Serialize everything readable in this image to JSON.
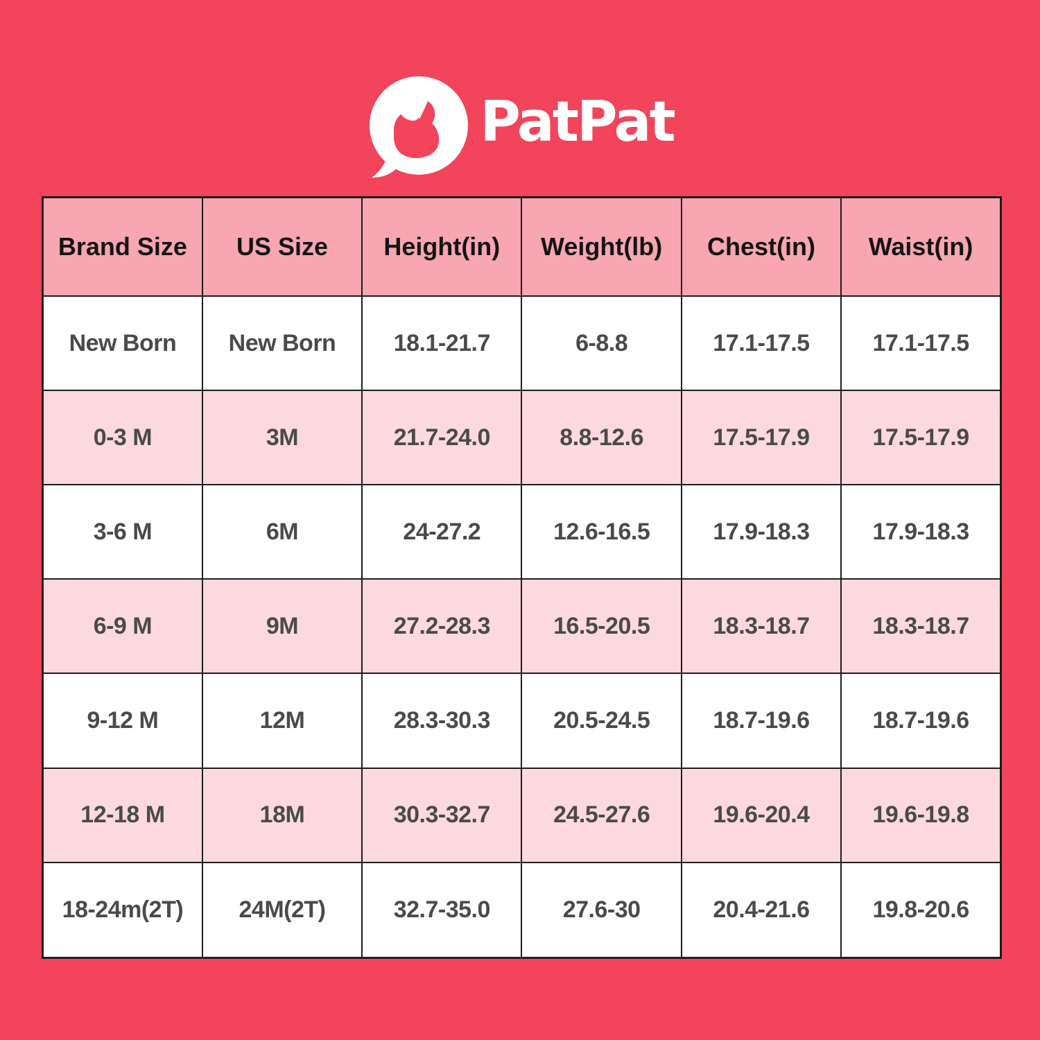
{
  "logo": {
    "text": "PatPat",
    "icon": "patpat-logo-icon"
  },
  "colors": {
    "background": "#F2445A",
    "header_bg": "#F8A6B1",
    "row_bg": "#FFFFFF",
    "row_alt_bg": "#FBD9DE",
    "border": "#1C1C1C",
    "logo_text": "#FFFFFF",
    "header_text": "#141414",
    "cell_text": "#4A4A4A"
  },
  "chart_data": {
    "type": "table",
    "title": "PatPat",
    "columns": [
      "Brand Size",
      "US Size",
      "Height(in)",
      "Weight(lb)",
      "Chest(in)",
      "Waist(in)"
    ],
    "rows": [
      [
        "New Born",
        "New Born",
        "18.1-21.7",
        "6-8.8",
        "17.1-17.5",
        "17.1-17.5"
      ],
      [
        "0-3 M",
        "3M",
        "21.7-24.0",
        "8.8-12.6",
        "17.5-17.9",
        "17.5-17.9"
      ],
      [
        "3-6 M",
        "6M",
        "24-27.2",
        "12.6-16.5",
        "17.9-18.3",
        "17.9-18.3"
      ],
      [
        "6-9 M",
        "9M",
        "27.2-28.3",
        "16.5-20.5",
        "18.3-18.7",
        "18.3-18.7"
      ],
      [
        "9-12 M",
        "12M",
        "28.3-30.3",
        "20.5-24.5",
        "18.7-19.6",
        "18.7-19.6"
      ],
      [
        "12-18 M",
        "18M",
        "30.3-32.7",
        "24.5-27.6",
        "19.6-20.4",
        "19.6-19.8"
      ],
      [
        "18-24m(2T)",
        "24M(2T)",
        "32.7-35.0",
        "27.6-30",
        "20.4-21.6",
        "19.8-20.6"
      ]
    ]
  }
}
